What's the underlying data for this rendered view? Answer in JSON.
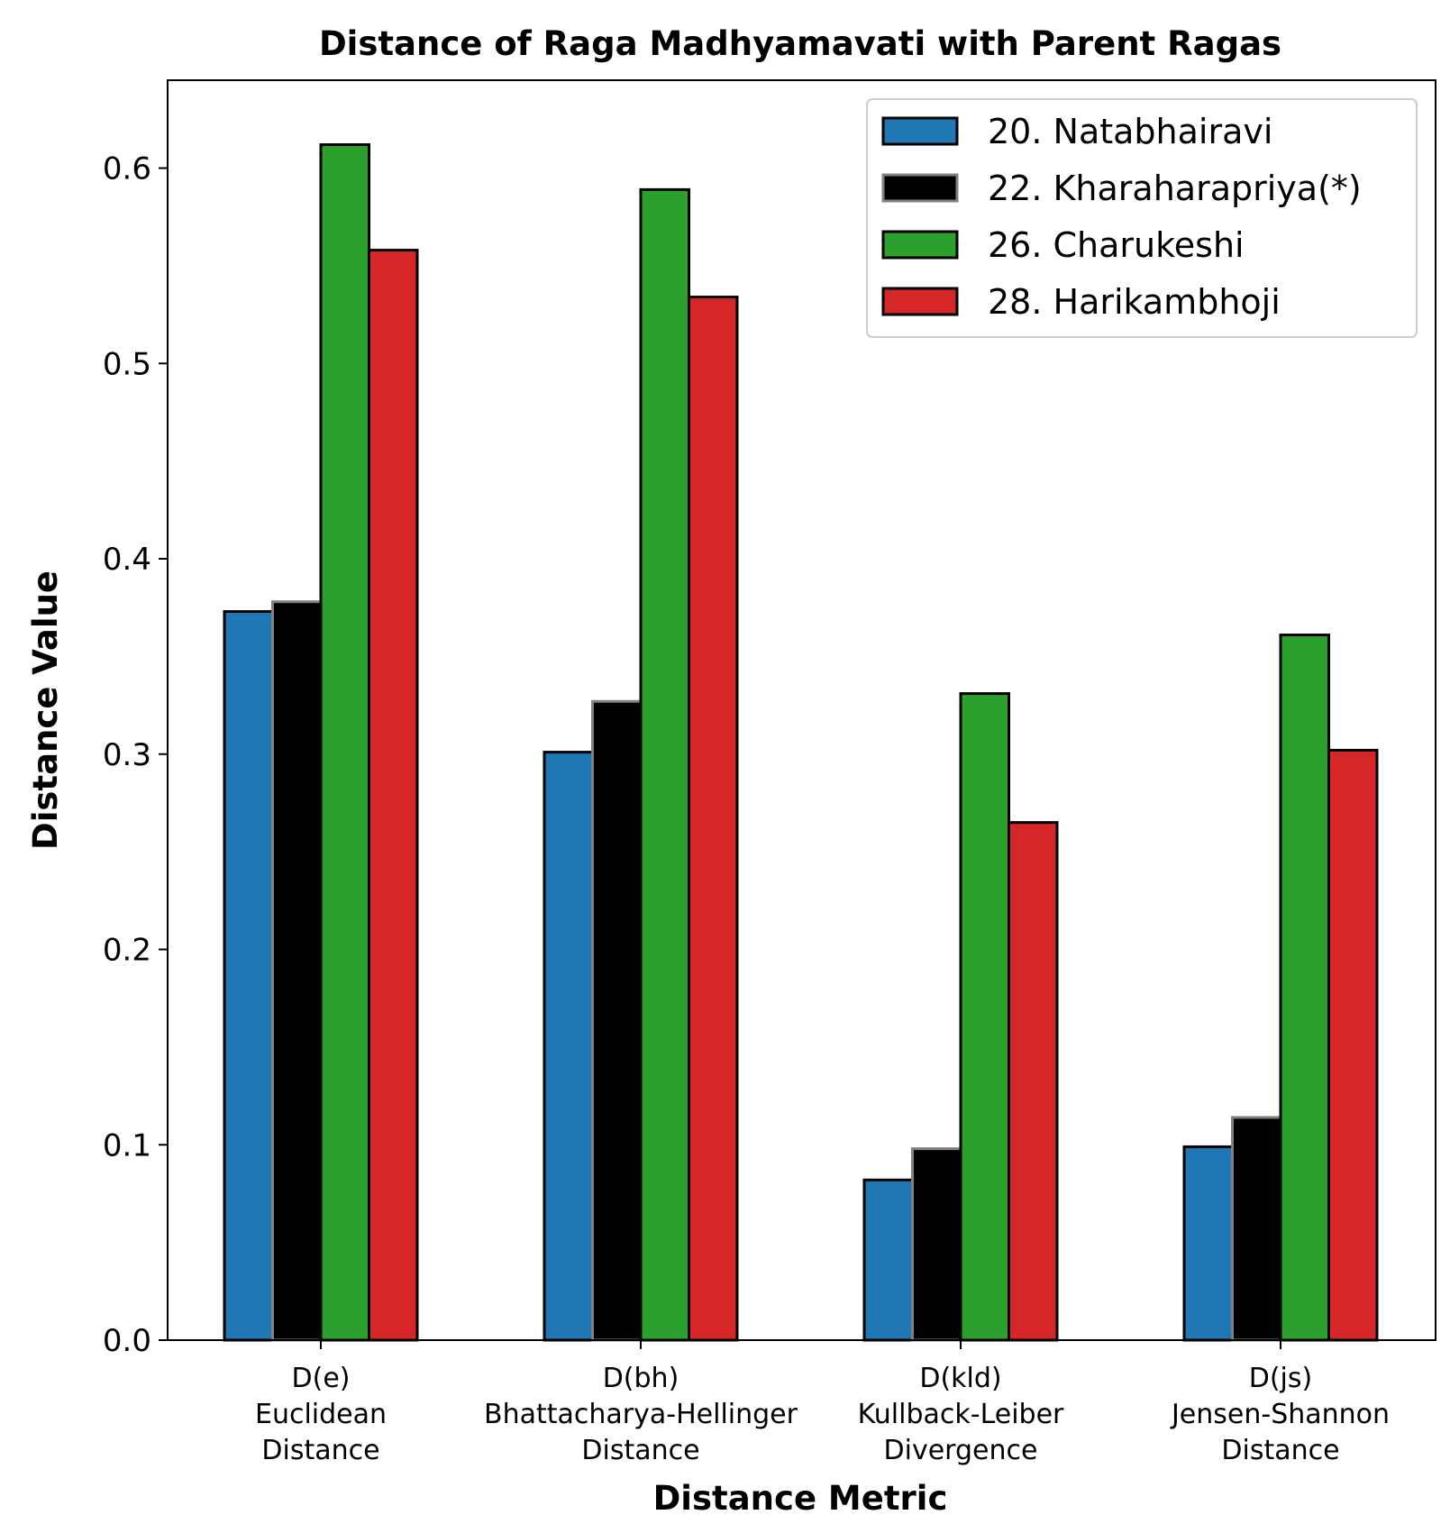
{
  "chart_data": {
    "type": "bar",
    "title": "Distance of Raga Madhyamavati with Parent Ragas",
    "xlabel": "Distance Metric",
    "ylabel": "Distance Value",
    "ylim": [
      0,
      0.645
    ],
    "yticks": [
      0.0,
      0.1,
      0.2,
      0.3,
      0.4,
      0.5,
      0.6
    ],
    "ytick_labels": [
      "0.0",
      "0.1",
      "0.2",
      "0.3",
      "0.4",
      "0.5",
      "0.6"
    ],
    "categories": [
      [
        "D(e)",
        "Euclidean",
        "Distance"
      ],
      [
        "D(bh)",
        "Bhattacharya-Hellinger",
        "Distance"
      ],
      [
        "D(kld)",
        "Kullback-Leiber",
        "Divergence"
      ],
      [
        "D(js)",
        "Jensen-Shannon",
        "Distance"
      ]
    ],
    "series": [
      {
        "name": "20. Natabhairavi",
        "color": "#1f77b4",
        "edge": "#000000",
        "values": [
          0.373,
          0.301,
          0.082,
          0.099
        ]
      },
      {
        "name": "22. Kharaharapriya(*)",
        "color": "#000000",
        "edge": "#808080",
        "values": [
          0.378,
          0.327,
          0.098,
          0.114
        ]
      },
      {
        "name": "26. Charukeshi",
        "color": "#2ca02c",
        "edge": "#000000",
        "values": [
          0.612,
          0.589,
          0.331,
          0.361
        ]
      },
      {
        "name": "28. Harikambhoji",
        "color": "#d62728",
        "edge": "#000000",
        "values": [
          0.558,
          0.534,
          0.265,
          0.302
        ]
      }
    ],
    "legend": "top-right",
    "grid": false
  }
}
